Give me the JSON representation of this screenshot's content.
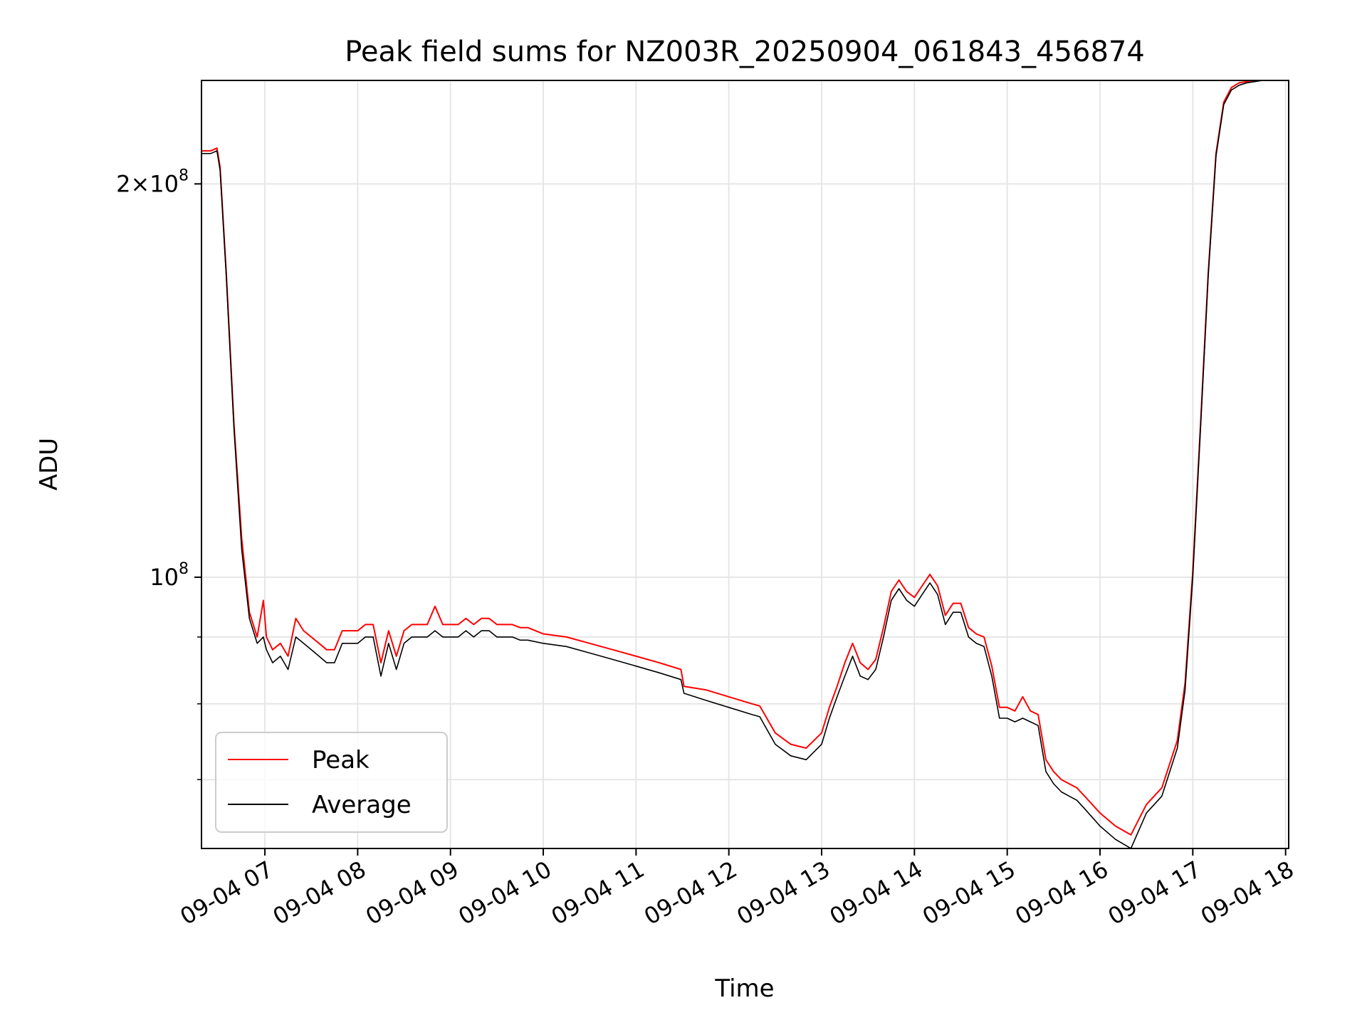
{
  "chart_data": {
    "type": "line",
    "title": "Peak field sums for NZ003R_20250904_061843_456874",
    "xlabel": "Time",
    "ylabel": "ADU",
    "yscale": "log",
    "xlim": [
      "2025-09-04 06:19",
      "2025-09-04 18:02"
    ],
    "ylim": [
      62000000,
      240000000
    ],
    "grid": true,
    "legend": {
      "placement": "lower-left",
      "entries": [
        "Peak",
        "Average"
      ]
    },
    "colors": {
      "Peak": "#ff0000",
      "Average": "#000000"
    },
    "x_ticks": [
      "09-04 07",
      "09-04 08",
      "09-04 09",
      "09-04 10",
      "09-04 11",
      "09-04 12",
      "09-04 13",
      "09-04 14",
      "09-04 15",
      "09-04 16",
      "09-04 17",
      "09-04 18"
    ],
    "y_ticks": [
      {
        "value": 200000000,
        "base": "2×10",
        "exp": "8"
      },
      {
        "value": 100000000,
        "base": "10",
        "exp": "8"
      }
    ],
    "y_minor_ticks": [
      70000000,
      80000000,
      90000000
    ],
    "x": [
      "06:19",
      "06:25",
      "06:29",
      "06:31",
      "06:35",
      "06:40",
      "06:45",
      "06:50",
      "06:55",
      "06:59",
      "07:01",
      "07:03",
      "07:05",
      "07:10",
      "07:15",
      "07:20",
      "07:25",
      "07:30",
      "07:35",
      "07:40",
      "07:45",
      "07:50",
      "07:55",
      "08:00",
      "08:05",
      "08:10",
      "08:15",
      "08:20",
      "08:25",
      "08:30",
      "08:35",
      "08:40",
      "08:45",
      "08:50",
      "08:55",
      "09:00",
      "09:05",
      "09:10",
      "09:15",
      "09:20",
      "09:25",
      "09:30",
      "09:35",
      "09:40",
      "09:45",
      "09:50",
      "10:00",
      "10:15",
      "10:30",
      "10:45",
      "11:00",
      "11:15",
      "11:29",
      "11:31",
      "11:45",
      "12:00",
      "12:15",
      "12:20",
      "12:30",
      "12:40",
      "12:50",
      "13:00",
      "13:05",
      "13:10",
      "13:15",
      "13:20",
      "13:25",
      "13:30",
      "13:35",
      "13:40",
      "13:45",
      "13:50",
      "13:55",
      "14:00",
      "14:05",
      "14:10",
      "14:15",
      "14:20",
      "14:25",
      "14:30",
      "14:35",
      "14:40",
      "14:45",
      "14:50",
      "14:55",
      "15:00",
      "15:05",
      "15:10",
      "15:15",
      "15:20",
      "15:25",
      "15:30",
      "15:35",
      "15:40",
      "15:45",
      "15:50",
      "15:55",
      "16:00",
      "16:10",
      "16:20",
      "16:30",
      "16:40",
      "16:50",
      "16:55",
      "17:00",
      "17:05",
      "17:10",
      "17:15",
      "17:20",
      "17:25",
      "17:30",
      "17:35",
      "17:40",
      "17:45",
      "17:50",
      "17:55",
      "18:00",
      "18:02"
    ],
    "series": [
      {
        "name": "Average",
        "values": [
          211000000,
          211000000,
          212000000,
          205000000,
          170000000,
          130000000,
          105000000,
          93000000,
          89000000,
          90000000,
          88000000,
          87000000,
          86000000,
          87000000,
          85000000,
          90000000,
          89000000,
          88000000,
          87000000,
          86000000,
          86000000,
          89000000,
          89000000,
          89000000,
          90000000,
          90000000,
          84000000,
          89000000,
          85000000,
          89000000,
          90000000,
          90000000,
          90000000,
          91000000,
          90000000,
          90000000,
          90000000,
          91000000,
          90000000,
          91000000,
          91000000,
          90000000,
          90000000,
          90000000,
          89500000,
          89500000,
          89000000,
          88500000,
          87500000,
          86500000,
          85500000,
          84500000,
          83500000,
          81500000,
          80500000,
          79500000,
          78500000,
          78200000,
          74500000,
          73000000,
          72500000,
          74500000,
          78000000,
          81000000,
          84000000,
          87000000,
          84000000,
          83500000,
          85000000,
          90000000,
          96000000,
          98000000,
          96000000,
          95000000,
          97000000,
          99000000,
          97000000,
          92000000,
          94000000,
          94000000,
          90000000,
          89000000,
          88500000,
          84000000,
          78000000,
          78000000,
          77500000,
          78000000,
          77500000,
          77000000,
          71000000,
          69500000,
          68500000,
          68000000,
          67500000,
          66500000,
          65500000,
          64500000,
          63000000,
          62000000,
          66000000,
          68000000,
          74000000,
          82000000,
          100000000,
          130000000,
          170000000,
          210000000,
          230000000,
          236000000,
          238000000,
          239000000,
          239500000,
          240000000,
          240000000,
          240000000,
          240000000,
          240000000
        ],
        "style": "solid"
      },
      {
        "name": "Peak",
        "values": [
          212000000,
          212000000,
          213000000,
          206000000,
          171000000,
          131000000,
          107000000,
          94000000,
          90000000,
          96000000,
          90000000,
          89000000,
          88000000,
          89000000,
          87000000,
          93000000,
          91000000,
          90000000,
          89000000,
          88000000,
          88000000,
          91000000,
          91000000,
          91000000,
          92000000,
          92000000,
          86000000,
          91000000,
          87000000,
          91000000,
          92000000,
          92000000,
          92000000,
          95000000,
          92000000,
          92000000,
          92000000,
          93000000,
          92000000,
          93000000,
          93000000,
          92000000,
          92000000,
          92000000,
          91500000,
          91500000,
          90500000,
          90000000,
          89000000,
          88000000,
          87000000,
          86000000,
          85000000,
          82500000,
          82000000,
          81000000,
          80000000,
          79700000,
          76000000,
          74500000,
          74000000,
          76000000,
          79500000,
          82500000,
          86000000,
          89000000,
          86000000,
          85000000,
          86500000,
          91500000,
          97500000,
          99500000,
          97500000,
          96500000,
          98500000,
          100500000,
          98500000,
          93500000,
          95500000,
          95500000,
          91500000,
          90500000,
          90000000,
          85500000,
          79500000,
          79500000,
          79000000,
          81000000,
          79000000,
          78500000,
          72500000,
          71000000,
          70000000,
          69500000,
          69000000,
          68000000,
          67000000,
          66000000,
          64500000,
          63500000,
          67000000,
          69000000,
          75000000,
          83000000,
          101000000,
          131000000,
          171000000,
          211000000,
          231000000,
          237000000,
          239000000,
          239500000,
          240000000,
          240000000,
          240000000,
          240000000,
          240000000,
          240000000
        ],
        "style": "solid"
      }
    ]
  }
}
